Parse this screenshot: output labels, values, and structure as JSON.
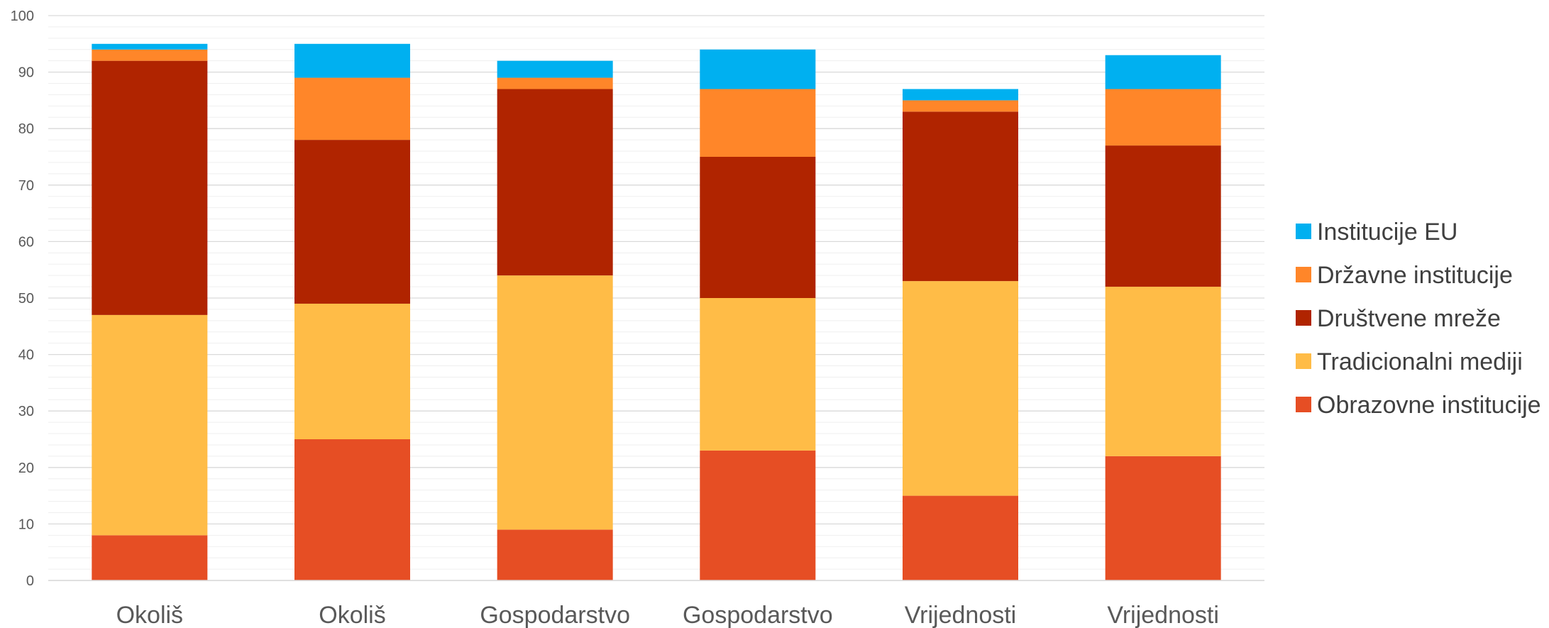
{
  "chart_data": {
    "type": "bar",
    "stacked": true,
    "categories": [
      "Okoliš",
      "Okoliš",
      "Gospodarstvo",
      "Gospodarstvo",
      "Vrijednosti",
      "Vrijednosti"
    ],
    "series": [
      {
        "name": "Obrazovne institucije",
        "color": "#E64E24",
        "values": [
          8,
          25,
          9,
          23,
          15,
          22
        ]
      },
      {
        "name": "Tradicionalni mediji",
        "color": "#FFBC47",
        "values": [
          39,
          24,
          45,
          27,
          38,
          30
        ]
      },
      {
        "name": "Društvene mreže",
        "color": "#B02400",
        "values": [
          45,
          29,
          33,
          25,
          30,
          25
        ]
      },
      {
        "name": "Državne institucije",
        "color": "#FF8629",
        "values": [
          2,
          11,
          2,
          12,
          2,
          10
        ]
      },
      {
        "name": "Institucije EU",
        "color": "#00B0F0",
        "values": [
          1,
          6,
          3,
          7,
          2,
          6
        ]
      }
    ],
    "ylim": [
      0,
      100
    ],
    "yticks": [
      "0",
      "10",
      "20",
      "30",
      "40",
      "50",
      "60",
      "70",
      "80",
      "90",
      "100"
    ],
    "grid": true,
    "legend_position": "right",
    "legend_order": [
      "Institucije EU",
      "Državne institucije",
      "Društvene mreže",
      "Tradicionalni mediji",
      "Obrazovne institucije"
    ],
    "title": "",
    "xlabel": "",
    "ylabel": ""
  }
}
